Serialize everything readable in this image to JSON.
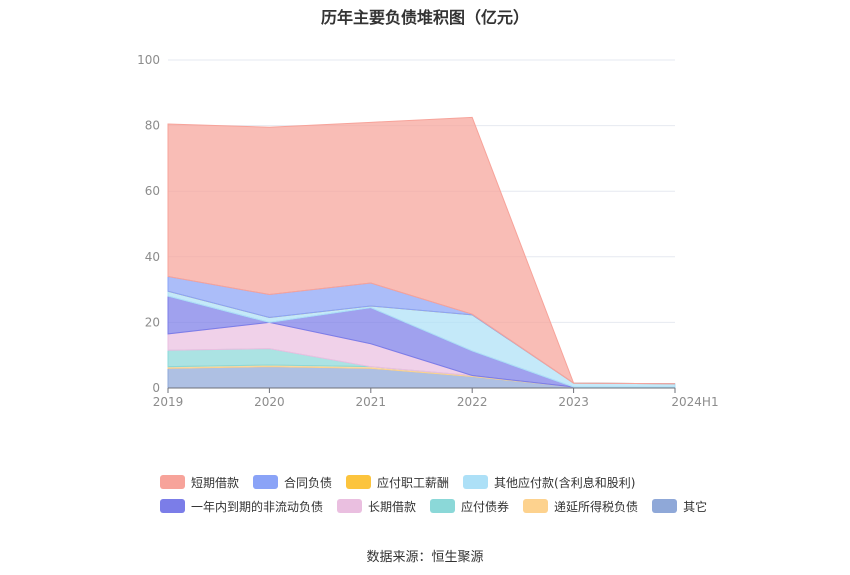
{
  "title": "历年主要负债堆积图（亿元）",
  "source": "数据来源：恒生聚源",
  "chart_data": {
    "type": "area",
    "stacked": true,
    "categories": [
      "2019",
      "2020",
      "2021",
      "2022",
      "2023",
      "2024H1"
    ],
    "ylim": [
      0,
      100
    ],
    "yticks": [
      0,
      20,
      40,
      60,
      80,
      100
    ],
    "grid": true,
    "legend_position": "bottom",
    "series": [
      {
        "name": "其它",
        "color": "#8fa8d8",
        "values": [
          6.0,
          6.5,
          6.0,
          3.5,
          0.3,
          0.3
        ]
      },
      {
        "name": "递延所得税负债",
        "color": "#fdd28e",
        "values": [
          0.5,
          0.5,
          0.5,
          0.3,
          0.0,
          0.0
        ]
      },
      {
        "name": "应付债券",
        "color": "#8bd8d8",
        "values": [
          5.0,
          5.0,
          0.0,
          0.0,
          0.0,
          0.0
        ]
      },
      {
        "name": "长期借款",
        "color": "#eabfe0",
        "values": [
          5.0,
          8.0,
          7.0,
          0.0,
          0.0,
          0.0
        ]
      },
      {
        "name": "一年内到期的非流动负债",
        "color": "#7b7de8",
        "values": [
          11.5,
          0.0,
          11.0,
          7.5,
          0.0,
          0.0
        ]
      },
      {
        "name": "其他应付款(含利息和股利)",
        "color": "#ade0f7",
        "values": [
          1.5,
          1.5,
          0.5,
          11.0,
          1.2,
          1.0
        ]
      },
      {
        "name": "应付职工薪酬",
        "color": "#fcc43d",
        "values": [
          0.0,
          0.0,
          0.0,
          0.0,
          0.0,
          0.0
        ]
      },
      {
        "name": "合同负债",
        "color": "#8aa3f7",
        "values": [
          4.5,
          7.0,
          7.0,
          0.2,
          0.0,
          0.0
        ]
      },
      {
        "name": "短期借款",
        "color": "#f7a39a",
        "values": [
          46.5,
          51.0,
          49.0,
          60.0,
          0.0,
          0.0
        ]
      }
    ],
    "legend_rows": [
      [
        "短期借款",
        "合同负债",
        "应付职工薪酬",
        "其他应付款(含利息和股利)"
      ],
      [
        "一年内到期的非流动负债",
        "长期借款",
        "应付债券",
        "递延所得税负债",
        "其它"
      ]
    ]
  }
}
